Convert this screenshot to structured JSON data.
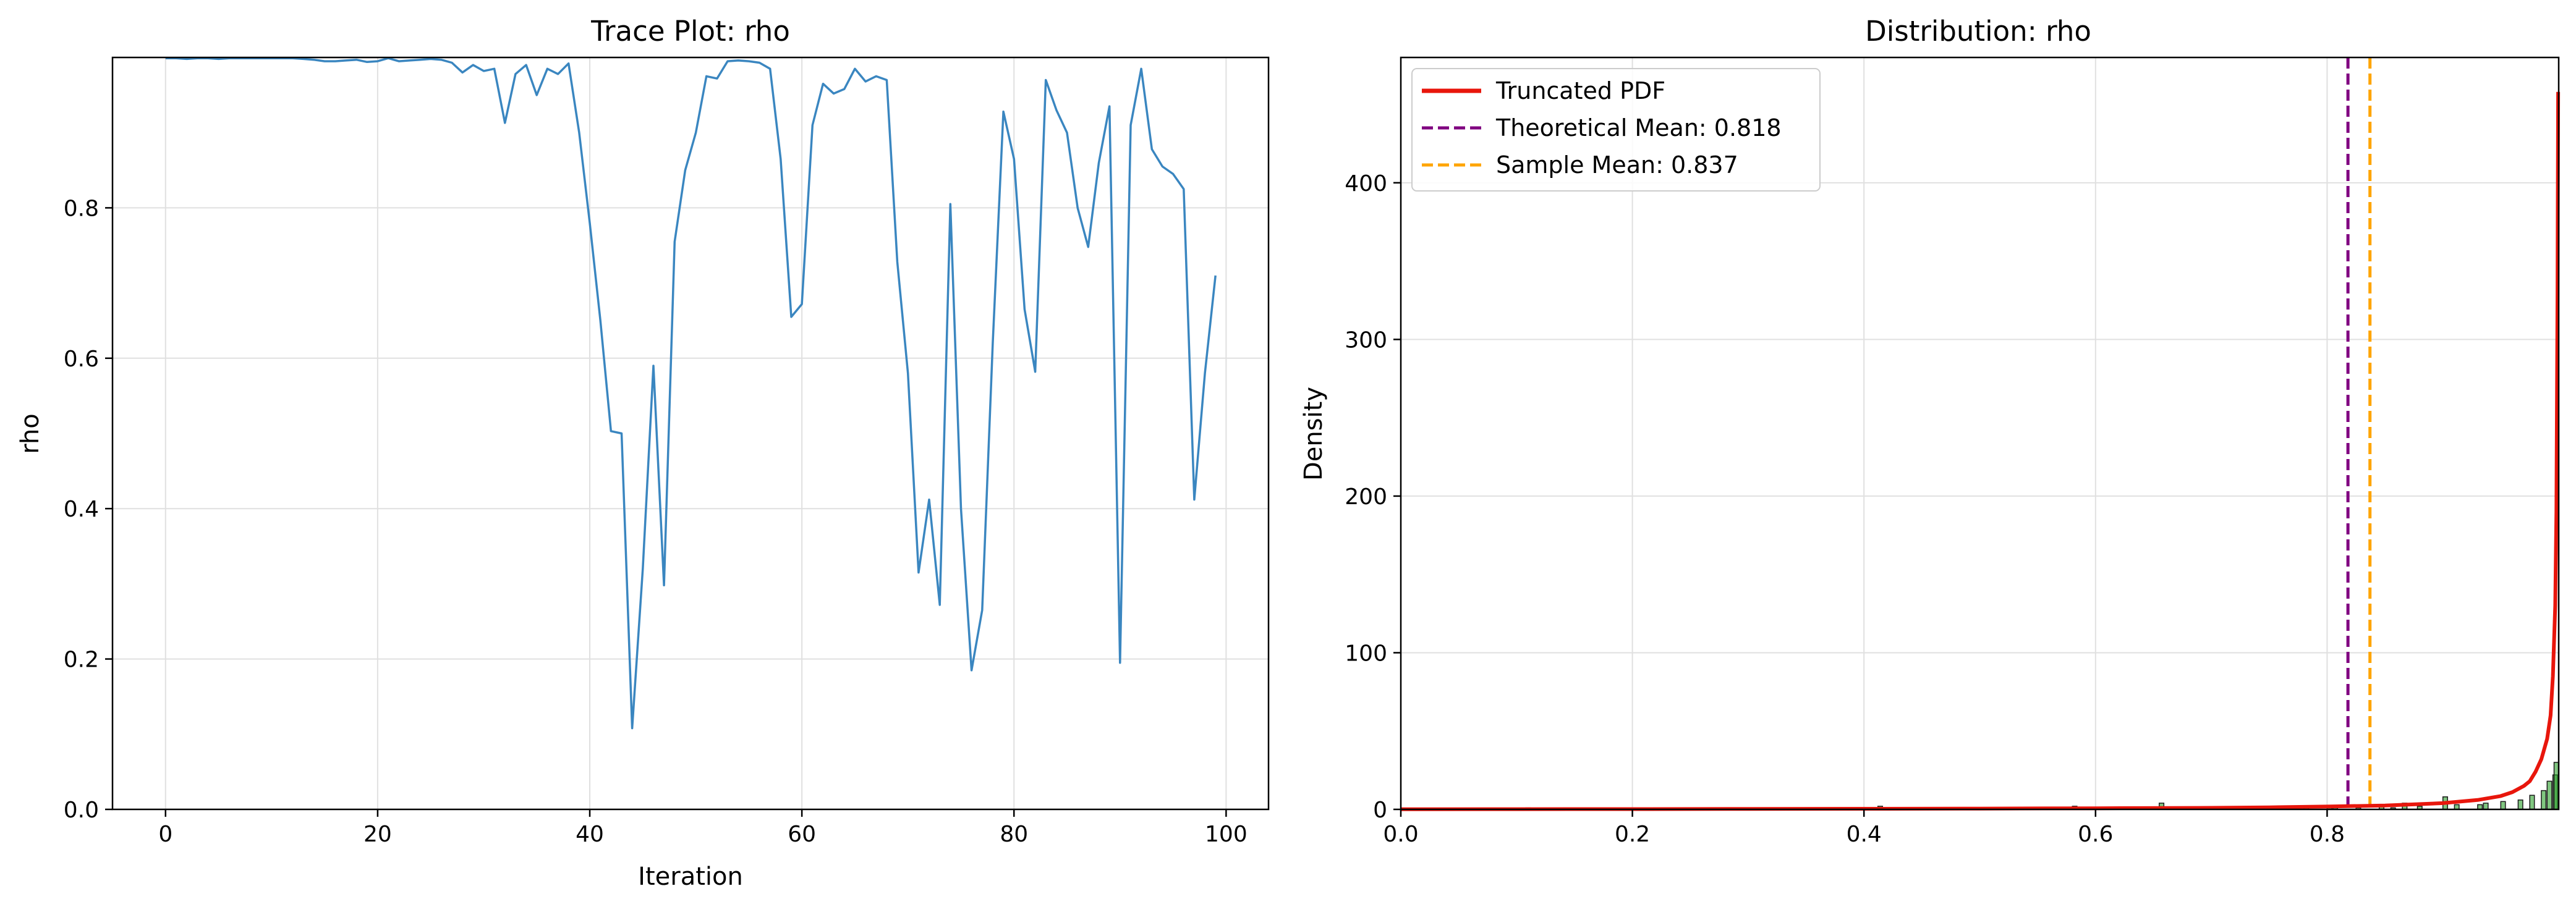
{
  "chart_data": [
    {
      "type": "line",
      "title": "Trace Plot: rho",
      "xlabel": "Iteration",
      "ylabel": "rho",
      "xlim": [
        -5,
        104
      ],
      "ylim": [
        0,
        1.0
      ],
      "x_ticks": [
        0,
        20,
        40,
        60,
        80,
        100
      ],
      "y_ticks": [
        0.0,
        0.2,
        0.4,
        0.6,
        0.8
      ],
      "x_tick_labels": [
        "0",
        "20",
        "40",
        "60",
        "80",
        "100"
      ],
      "y_tick_labels": [
        "0.0",
        "0.2",
        "0.4",
        "0.6",
        "0.8"
      ],
      "grid": true,
      "color": "#3a86c0",
      "series": [
        {
          "x": [
            0,
            1,
            2,
            3,
            4,
            5,
            6,
            7,
            8,
            9,
            10,
            11,
            12,
            13,
            14,
            15,
            16,
            17,
            18,
            19,
            20,
            21,
            22,
            23,
            24,
            25,
            26,
            27,
            28,
            29,
            30,
            31,
            32,
            33,
            34,
            35,
            36,
            37,
            38,
            39,
            40,
            41,
            42,
            43,
            44,
            45,
            46,
            47,
            48,
            49,
            50,
            51,
            52,
            53,
            54,
            55,
            56,
            57,
            58,
            59,
            60,
            61,
            62,
            63,
            64,
            65,
            66,
            67,
            68,
            69,
            70,
            71,
            72,
            73,
            74,
            75,
            76,
            77,
            78,
            79,
            80,
            81,
            82,
            83,
            84,
            85,
            86,
            87,
            88,
            89,
            90,
            91,
            92,
            93,
            94,
            95,
            96,
            97,
            98,
            99
          ],
          "y": [
            0.999,
            0.999,
            0.998,
            0.999,
            0.999,
            0.998,
            0.999,
            0.999,
            0.999,
            0.999,
            0.999,
            0.999,
            0.999,
            0.998,
            0.997,
            0.995,
            0.995,
            0.996,
            0.997,
            0.994,
            0.995,
            0.999,
            0.995,
            0.996,
            0.997,
            0.998,
            0.997,
            0.993,
            0.98,
            0.99,
            0.982,
            0.985,
            0.913,
            0.978,
            0.99,
            0.95,
            0.985,
            0.978,
            0.992,
            0.9,
            0.78,
            0.65,
            0.503,
            0.5,
            0.108,
            0.32,
            0.59,
            0.298,
            0.755,
            0.85,
            0.9,
            0.975,
            0.972,
            0.995,
            0.996,
            0.995,
            0.993,
            0.985,
            0.865,
            0.655,
            0.672,
            0.91,
            0.965,
            0.952,
            0.958,
            0.985,
            0.968,
            0.975,
            0.97,
            0.728,
            0.58,
            0.315,
            0.412,
            0.272,
            0.805,
            0.4,
            0.185,
            0.265,
            0.62,
            0.928,
            0.865,
            0.665,
            0.582,
            0.97,
            0.93,
            0.9,
            0.8,
            0.748,
            0.86,
            0.935,
            0.195,
            0.91,
            0.985,
            0.878,
            0.855,
            0.845,
            0.825,
            0.412,
            0.58,
            0.71
          ]
        }
      ]
    },
    {
      "type": "bar",
      "title": "Distribution: rho",
      "xlabel": "",
      "ylabel": "Density",
      "xlim": [
        0.0,
        1.0
      ],
      "ylim": [
        0,
        480
      ],
      "x_ticks": [
        0.0,
        0.2,
        0.4,
        0.6,
        0.8
      ],
      "y_ticks": [
        0,
        100,
        200,
        300,
        400
      ],
      "x_tick_labels": [
        "0.0",
        "0.2",
        "0.4",
        "0.6",
        "0.8"
      ],
      "y_tick_labels": [
        "0",
        "100",
        "200",
        "300",
        "400"
      ],
      "grid": true,
      "legend_position": "top-left",
      "histogram": {
        "color": "#2ca02c",
        "edge_color": "#1a1a1a",
        "bins": [
          {
            "x": 0.108,
            "density": 1
          },
          {
            "x": 0.185,
            "density": 1
          },
          {
            "x": 0.195,
            "density": 1
          },
          {
            "x": 0.265,
            "density": 1
          },
          {
            "x": 0.272,
            "density": 1
          },
          {
            "x": 0.298,
            "density": 1
          },
          {
            "x": 0.315,
            "density": 1
          },
          {
            "x": 0.32,
            "density": 1
          },
          {
            "x": 0.412,
            "density": 2
          },
          {
            "x": 0.43,
            "density": 1
          },
          {
            "x": 0.5,
            "density": 1
          },
          {
            "x": 0.503,
            "density": 1
          },
          {
            "x": 0.565,
            "density": 1
          },
          {
            "x": 0.58,
            "density": 2
          },
          {
            "x": 0.59,
            "density": 1
          },
          {
            "x": 0.62,
            "density": 1
          },
          {
            "x": 0.65,
            "density": 1
          },
          {
            "x": 0.655,
            "density": 4
          },
          {
            "x": 0.665,
            "density": 1
          },
          {
            "x": 0.672,
            "density": 1
          },
          {
            "x": 0.71,
            "density": 1
          },
          {
            "x": 0.728,
            "density": 1
          },
          {
            "x": 0.748,
            "density": 1
          },
          {
            "x": 0.755,
            "density": 1
          },
          {
            "x": 0.78,
            "density": 1
          },
          {
            "x": 0.8,
            "density": 1
          },
          {
            "x": 0.805,
            "density": 1
          },
          {
            "x": 0.825,
            "density": 1
          },
          {
            "x": 0.845,
            "density": 2
          },
          {
            "x": 0.855,
            "density": 1
          },
          {
            "x": 0.865,
            "density": 4
          },
          {
            "x": 0.878,
            "density": 2
          },
          {
            "x": 0.9,
            "density": 8
          },
          {
            "x": 0.91,
            "density": 3
          },
          {
            "x": 0.93,
            "density": 3
          },
          {
            "x": 0.935,
            "density": 4
          },
          {
            "x": 0.95,
            "density": 5
          },
          {
            "x": 0.965,
            "density": 6
          },
          {
            "x": 0.975,
            "density": 9
          },
          {
            "x": 0.985,
            "density": 12
          },
          {
            "x": 0.99,
            "density": 18
          },
          {
            "x": 0.995,
            "density": 22
          },
          {
            "x": 0.998,
            "density": 30
          }
        ]
      },
      "pdf_curve": {
        "name": "Truncated PDF",
        "color": "#e8160c",
        "x": [
          0.0,
          0.1,
          0.2,
          0.3,
          0.4,
          0.5,
          0.6,
          0.7,
          0.75,
          0.8,
          0.85,
          0.9,
          0.93,
          0.95,
          0.96,
          0.97,
          0.975,
          0.98,
          0.985,
          0.99,
          0.993,
          0.995,
          0.997,
          0.998,
          0.999,
          0.9995
        ],
        "y": [
          0.1,
          0.15,
          0.2,
          0.3,
          0.4,
          0.5,
          0.7,
          1.0,
          1.3,
          1.8,
          2.5,
          4,
          6,
          8.5,
          11,
          15,
          18,
          24,
          32,
          45,
          60,
          85,
          130,
          190,
          330,
          458
        ]
      },
      "vlines": [
        {
          "name": "Theoretical Mean: 0.818",
          "x": 0.818,
          "color": "#800080",
          "style": "dashed"
        },
        {
          "name": "Sample Mean: 0.837",
          "x": 0.837,
          "color": "#ffa500",
          "style": "dashed"
        }
      ]
    }
  ]
}
